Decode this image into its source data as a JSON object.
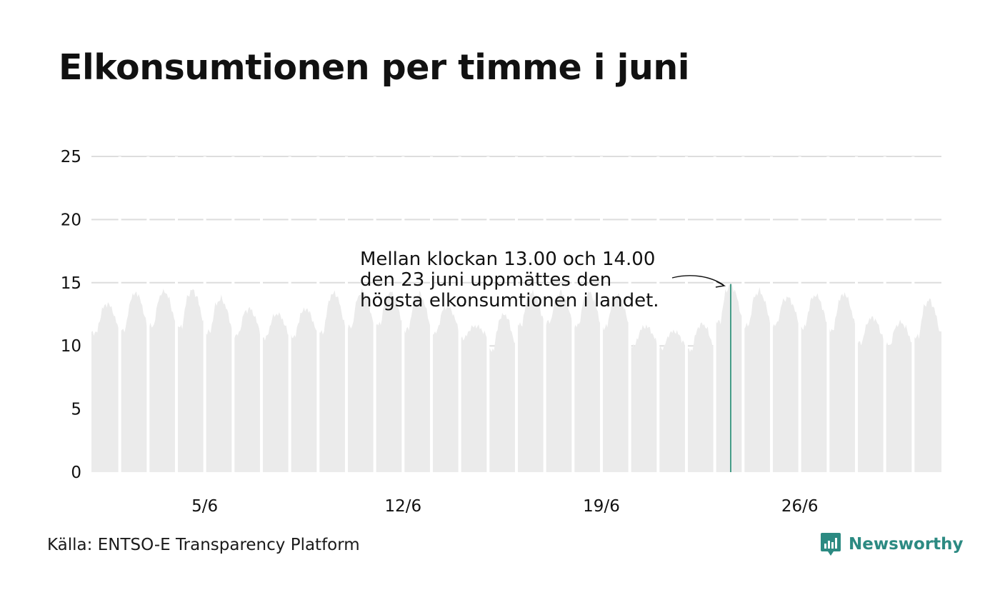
{
  "title": "Elkonsumtionen per timme i juni",
  "source": "Källa: ENTSO-E Transparency Platform",
  "brand": {
    "name": "Newsworthy",
    "logo_icon": "bar-chart-speech-bubble-icon"
  },
  "colors": {
    "area": "#ebebeb",
    "highlight": "#1f8a70",
    "grid": "#dddddd",
    "brand": "#2c8a82"
  },
  "chart_data": {
    "type": "area",
    "x_unit": "day of June (1–30), hourly resolution",
    "x_range": [
      1,
      31
    ],
    "ylim": [
      0,
      25
    ],
    "y_ticks": [
      0,
      5,
      10,
      15,
      20,
      25
    ],
    "x_ticks": [
      {
        "value": 5,
        "label": "5/6"
      },
      {
        "value": 12,
        "label": "12/6"
      },
      {
        "value": 19,
        "label": "19/6"
      },
      {
        "value": 26,
        "label": "26/6"
      }
    ],
    "grid": true,
    "daily_pattern": {
      "days": [
        1,
        2,
        3,
        4,
        5,
        6,
        7,
        8,
        9,
        10,
        11,
        12,
        13,
        14,
        15,
        16,
        17,
        18,
        19,
        20,
        21,
        22,
        23,
        24,
        25,
        26,
        27,
        28,
        29,
        30
      ],
      "night_min": [
        11.0,
        11.2,
        11.5,
        11.4,
        11.0,
        10.8,
        10.6,
        10.7,
        11.0,
        11.4,
        11.6,
        11.2,
        11.0,
        10.6,
        9.6,
        11.6,
        11.8,
        11.5,
        11.4,
        10.0,
        9.8,
        9.6,
        11.8,
        11.5,
        11.6,
        11.4,
        11.2,
        10.2,
        10.0,
        10.6
      ],
      "day_max": [
        13.4,
        14.3,
        14.4,
        14.5,
        13.8,
        13.0,
        12.6,
        13.0,
        14.3,
        14.4,
        14.3,
        14.2,
        13.2,
        11.6,
        12.6,
        14.3,
        14.3,
        14.3,
        14.1,
        11.6,
        11.2,
        11.8,
        14.9,
        14.4,
        13.9,
        14.1,
        14.2,
        12.3,
        11.9,
        13.7
      ]
    },
    "highlight": {
      "day": 23,
      "hour": "13.00–14.00",
      "value": 14.9
    },
    "annotation": {
      "lines": [
        "Mellan klockan 13.00 och 14.00",
        "den 23 juni uppmättes den",
        "högsta elkonsumtionen i landet."
      ]
    }
  }
}
